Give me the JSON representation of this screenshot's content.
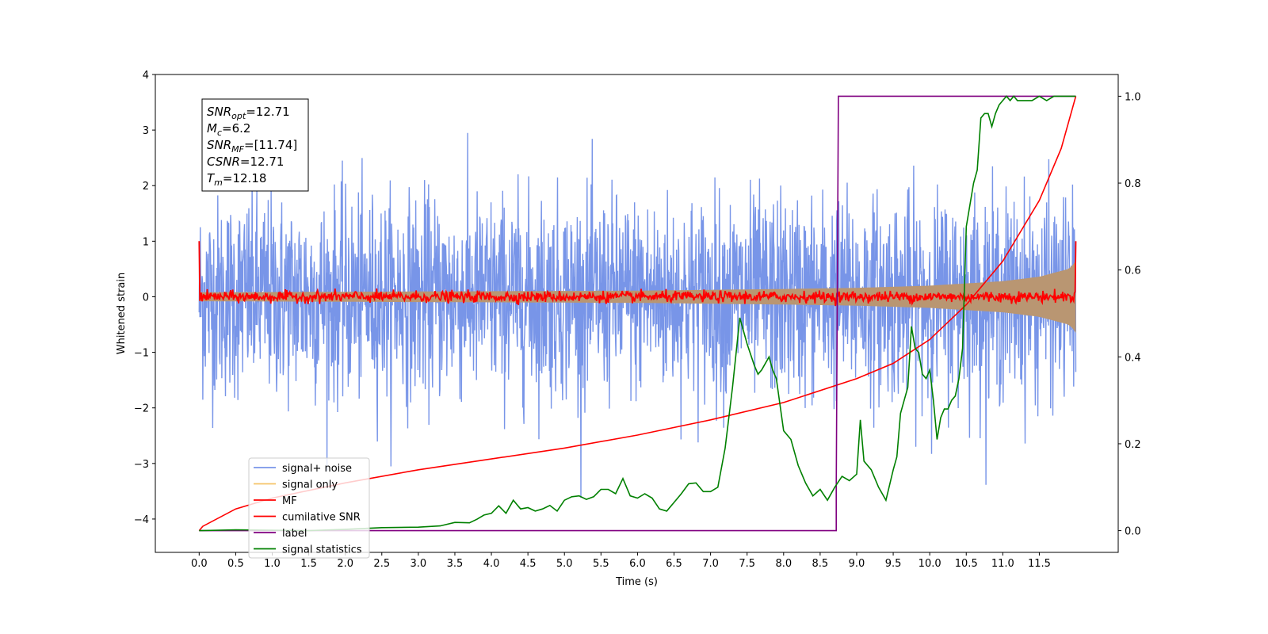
{
  "chart_data": {
    "type": "line",
    "xlabel": "Time (s)",
    "ylabel": "Whitened strain",
    "xlim": [
      -0.6,
      12.58
    ],
    "ylim": [
      -4.6,
      4.0
    ],
    "ylim_right": [
      -0.05,
      1.05
    ],
    "x_ticks": [
      0.0,
      0.5,
      1.0,
      1.5,
      2.0,
      2.5,
      3.0,
      3.5,
      4.0,
      4.5,
      5.0,
      5.5,
      6.0,
      6.5,
      7.0,
      7.5,
      8.0,
      8.5,
      9.0,
      9.5,
      10.0,
      10.5,
      11.0,
      11.5
    ],
    "x_tick_labels": [
      "0.0",
      "0.5",
      "1.0",
      "1.5",
      "2.0",
      "2.5",
      "3.0",
      "3.5",
      "4.0",
      "4.5",
      "5.0",
      "5.5",
      "6.0",
      "6.5",
      "7.0",
      "7.5",
      "8.0",
      "8.5",
      "9.0",
      "9.5",
      "10.0",
      "10.5",
      "11.0",
      "11.5"
    ],
    "y_ticks": [
      -4,
      -3,
      -2,
      -1,
      0,
      1,
      2,
      3,
      4
    ],
    "y_tick_labels": [
      "−4",
      "−3",
      "−2",
      "−1",
      "0",
      "1",
      "2",
      "3",
      "4"
    ],
    "y_ticks_right": [
      0.0,
      0.2,
      0.4,
      0.6,
      0.8,
      1.0
    ],
    "y_tick_labels_right": [
      "0.0",
      "0.2",
      "0.4",
      "0.6",
      "0.8",
      "1.0"
    ],
    "grid": false,
    "legend_position": "bottom-left",
    "info_box": [
      {
        "var": "SNR",
        "sub": "opt",
        "value": "=12.71"
      },
      {
        "var": "M",
        "sub": "c",
        "value": "=6.2"
      },
      {
        "var": "SNR",
        "sub": "MF",
        "value": "=[11.74]"
      },
      {
        "var": "CSNR",
        "sub": "",
        "value": "=12.71"
      },
      {
        "var": "T",
        "sub": "m",
        "value": "=12.18"
      }
    ],
    "series": [
      {
        "name": "signal+ noise",
        "axis": "left",
        "color": "#7895e8",
        "kind": "noise",
        "x_range": [
          0.0,
          12.0
        ],
        "typical_envelope": [
          -2.0,
          2.0
        ],
        "peak_range": [
          -4.15,
          3.6
        ]
      },
      {
        "name": "signal only",
        "axis": "left",
        "color": "#f5c469",
        "kind": "chirp_envelope",
        "x_range": [
          0.0,
          12.0
        ],
        "amplitude": {
          "x": [
            0,
            2,
            4,
            6,
            8,
            9,
            10,
            11,
            11.5,
            11.9,
            11.98,
            12.0
          ],
          "y": [
            0.08,
            0.09,
            0.1,
            0.11,
            0.14,
            0.16,
            0.2,
            0.28,
            0.36,
            0.5,
            0.6,
            0.65
          ]
        }
      },
      {
        "name": "MF",
        "axis": "left",
        "color": "#ff0000",
        "kind": "matched_filter",
        "x_range": [
          0.0,
          12.0
        ],
        "start": 1.0,
        "end": 1.0,
        "typical_range": [
          -0.12,
          0.12
        ]
      },
      {
        "name": "cumilative SNR",
        "axis": "right",
        "color": "#ff0000",
        "x": [
          0.0,
          0.05,
          0.5,
          1.0,
          2.0,
          3.0,
          4.0,
          5.0,
          6.0,
          7.0,
          8.0,
          9.0,
          9.5,
          10.0,
          10.5,
          11.0,
          11.5,
          11.8,
          12.0
        ],
        "y": [
          0.0,
          0.01,
          0.05,
          0.075,
          0.11,
          0.14,
          0.165,
          0.19,
          0.22,
          0.255,
          0.295,
          0.35,
          0.385,
          0.44,
          0.52,
          0.62,
          0.76,
          0.88,
          1.0
        ]
      },
      {
        "name": "label",
        "axis": "right",
        "color": "#800080",
        "x": [
          0.0,
          8.72,
          8.72,
          8.75,
          12.0
        ],
        "y": [
          0.0,
          0.0,
          0.1,
          1.0,
          1.0
        ]
      },
      {
        "name": "signal statistics",
        "axis": "right",
        "color": "#008000",
        "x": [
          0.0,
          0.5,
          1.0,
          1.5,
          2.0,
          2.5,
          3.0,
          3.3,
          3.5,
          3.7,
          3.8,
          3.9,
          4.0,
          4.1,
          4.2,
          4.3,
          4.4,
          4.5,
          4.6,
          4.7,
          4.8,
          4.9,
          5.0,
          5.1,
          5.2,
          5.3,
          5.4,
          5.5,
          5.6,
          5.7,
          5.8,
          5.9,
          6.0,
          6.1,
          6.2,
          6.3,
          6.4,
          6.5,
          6.6,
          6.7,
          6.8,
          6.9,
          7.0,
          7.1,
          7.2,
          7.3,
          7.4,
          7.45,
          7.5,
          7.6,
          7.65,
          7.7,
          7.8,
          7.85,
          7.9,
          8.0,
          8.1,
          8.2,
          8.3,
          8.4,
          8.5,
          8.6,
          8.7,
          8.8,
          8.9,
          9.0,
          9.05,
          9.1,
          9.2,
          9.3,
          9.4,
          9.5,
          9.55,
          9.6,
          9.7,
          9.75,
          9.8,
          9.85,
          9.9,
          9.95,
          10.0,
          10.05,
          10.1,
          10.15,
          10.2,
          10.25,
          10.3,
          10.35,
          10.4,
          10.45,
          10.5,
          10.55,
          10.6,
          10.65,
          10.7,
          10.75,
          10.8,
          10.85,
          10.9,
          10.95,
          11.0,
          11.05,
          11.1,
          11.15,
          11.2,
          11.3,
          11.4,
          11.5,
          11.6,
          11.7,
          11.8,
          11.9,
          12.0
        ],
        "y": [
          0.0,
          0.002,
          0.001,
          0.0,
          0.003,
          0.007,
          0.008,
          0.011,
          0.019,
          0.018,
          0.026,
          0.036,
          0.04,
          0.057,
          0.04,
          0.07,
          0.05,
          0.053,
          0.045,
          0.05,
          0.058,
          0.045,
          0.07,
          0.078,
          0.08,
          0.072,
          0.078,
          0.095,
          0.095,
          0.085,
          0.12,
          0.08,
          0.075,
          0.085,
          0.075,
          0.05,
          0.045,
          0.065,
          0.085,
          0.108,
          0.11,
          0.09,
          0.09,
          0.1,
          0.19,
          0.33,
          0.49,
          0.46,
          0.43,
          0.38,
          0.36,
          0.37,
          0.4,
          0.37,
          0.35,
          0.23,
          0.21,
          0.15,
          0.11,
          0.08,
          0.095,
          0.07,
          0.1,
          0.125,
          0.115,
          0.13,
          0.255,
          0.16,
          0.14,
          0.1,
          0.07,
          0.14,
          0.17,
          0.27,
          0.33,
          0.47,
          0.42,
          0.41,
          0.36,
          0.35,
          0.37,
          0.3,
          0.21,
          0.26,
          0.28,
          0.28,
          0.3,
          0.31,
          0.35,
          0.42,
          0.7,
          0.75,
          0.8,
          0.83,
          0.95,
          0.96,
          0.96,
          0.93,
          0.96,
          0.98,
          0.99,
          1.0,
          0.99,
          1.0,
          0.99,
          0.99,
          0.99,
          1.0,
          0.99,
          1.0,
          1.0,
          1.0,
          1.0
        ]
      }
    ]
  }
}
